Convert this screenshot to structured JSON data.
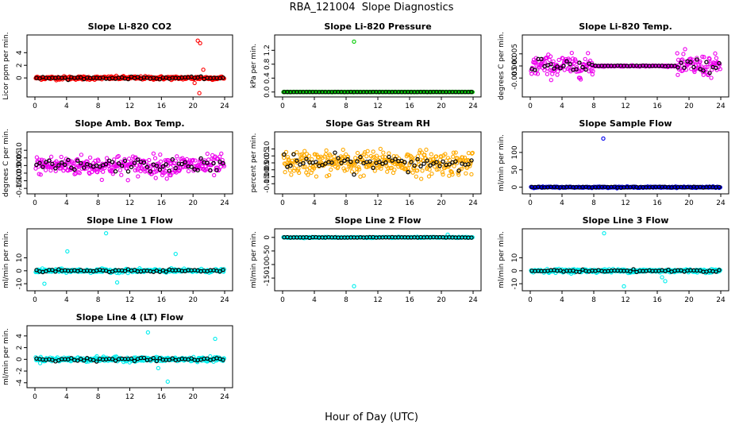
{
  "page": {
    "title": "RBA_121004  Slope Diagnostics",
    "xlabel": "Hour of Day (UTC)"
  },
  "chart_data": [
    {
      "type": "scatter",
      "title": "Slope Li-820 CO2",
      "ylabel": "Licor ppm per min.",
      "xlim": [
        0,
        24
      ],
      "ylim": [
        -2.5,
        6.3
      ],
      "xticks": [
        0,
        4,
        8,
        12,
        16,
        20,
        24
      ],
      "yticks": [
        0,
        2,
        4
      ],
      "ytick_labels": [
        "0",
        "2",
        "4"
      ],
      "color": "#ff0000",
      "noise": 0.25,
      "outliers": [
        [
          20.6,
          5.9
        ],
        [
          20.9,
          5.5
        ],
        [
          20.8,
          -2.4
        ],
        [
          21.3,
          1.3
        ],
        [
          20.2,
          -0.8
        ]
      ]
    },
    {
      "type": "scatter",
      "title": "Slope Li-820 Pressure",
      "ylabel": "kPa per min.",
      "xlim": [
        0,
        24
      ],
      "ylim": [
        -0.05,
        1.55
      ],
      "xticks": [
        0,
        4,
        8,
        12,
        16,
        20,
        24
      ],
      "yticks": [
        0,
        0.4,
        0.8,
        1.2
      ],
      "ytick_labels": [
        "0.0",
        "0.4",
        "0.8",
        "1.2"
      ],
      "color": "#00cc00",
      "noise": 0.004,
      "outliers": [
        [
          9.0,
          1.45
        ]
      ]
    },
    {
      "type": "scatter",
      "title": "Slope Li-820 Temp.",
      "ylabel": "degrees C per min.",
      "xlim": [
        0,
        24
      ],
      "ylim": [
        -0.0115,
        0.0115
      ],
      "xticks": [
        0,
        4,
        8,
        12,
        16,
        20,
        24
      ],
      "yticks": [
        -0.005,
        0,
        0.005
      ],
      "ytick_labels": [
        "-0.005",
        "0.000",
        "0.005"
      ],
      "color": "#ee00ee",
      "noise": 0.004,
      "quiet_range": [
        8,
        18.5
      ],
      "outliers": []
    },
    {
      "type": "scatter",
      "title": "Slope Amb. Box Temp.",
      "ylabel": "degrees C per min.",
      "xlim": [
        0,
        24
      ],
      "ylim": [
        -0.165,
        0.2
      ],
      "xticks": [
        0,
        4,
        8,
        12,
        16,
        20,
        24
      ],
      "yticks": [
        -0.15,
        -0.1,
        -0.05,
        0,
        0.05,
        0.1
      ],
      "ytick_labels": [
        "-0.15",
        "-0.10",
        "-0.05",
        "0.00",
        "0.05",
        "0.10"
      ],
      "color": "#ee00ee",
      "noise": 0.06,
      "outliers": []
    },
    {
      "type": "scatter",
      "title": "Slope Gas Stream RH",
      "ylabel": "percent per min.",
      "xlim": [
        0,
        24
      ],
      "ylim": [
        -0.2,
        0.2
      ],
      "xticks": [
        0,
        4,
        8,
        12,
        16,
        20,
        24
      ],
      "yticks": [
        -0.15,
        -0.1,
        -0.05,
        0,
        0.05,
        0.1
      ],
      "ytick_labels": [
        "-0.15",
        "-0.10",
        "-0.05",
        "0.00",
        "0.05",
        "0.10"
      ],
      "color": "#ffaa00",
      "noise": 0.08,
      "outliers": []
    },
    {
      "type": "scatter",
      "title": "Slope Sample Flow",
      "ylabel": "ml/min per min.",
      "xlim": [
        0,
        24
      ],
      "ylim": [
        -10,
        150
      ],
      "xticks": [
        0,
        4,
        8,
        12,
        16,
        20,
        24
      ],
      "yticks": [
        0,
        50,
        100
      ],
      "ytick_labels": [
        "0",
        "50",
        "100"
      ],
      "color": "#0000ee",
      "noise": 1.5,
      "outliers": [
        [
          9.2,
          140
        ]
      ]
    },
    {
      "type": "scatter",
      "title": "Slope Line 1 Flow",
      "ylabel": "ml/min per min.",
      "xlim": [
        0,
        24
      ],
      "ylim": [
        -13,
        30
      ],
      "xticks": [
        0,
        4,
        8,
        12,
        16,
        20,
        24
      ],
      "yticks": [
        -10,
        0,
        10
      ],
      "ytick_labels": [
        "-10",
        "0",
        "10"
      ],
      "color": "#00eeee",
      "noise": 1.2,
      "outliers": [
        [
          9.0,
          29
        ],
        [
          1.2,
          -10
        ],
        [
          4.1,
          15
        ],
        [
          17.8,
          13
        ],
        [
          10.4,
          -9
        ]
      ]
    },
    {
      "type": "scatter",
      "title": "Slope Line 2 Flow",
      "ylabel": "ml/min per min.",
      "xlim": [
        0,
        24
      ],
      "ylim": [
        -185,
        20
      ],
      "xticks": [
        0,
        4,
        8,
        12,
        16,
        20,
        24
      ],
      "yticks": [
        -150,
        -100,
        -50,
        0
      ],
      "ytick_labels": [
        "-150",
        "-100",
        "-50",
        "0"
      ],
      "color": "#00eeee",
      "noise": 1.5,
      "outliers": [
        [
          9.0,
          -180
        ],
        [
          20.8,
          10
        ]
      ]
    },
    {
      "type": "scatter",
      "title": "Slope Line 3 Flow",
      "ylabel": "ml/min per min.",
      "xlim": [
        0,
        24
      ],
      "ylim": [
        -13,
        30
      ],
      "xticks": [
        0,
        4,
        8,
        12,
        16,
        20,
        24
      ],
      "yticks": [
        -10,
        0,
        10
      ],
      "ytick_labels": [
        "-10",
        "0",
        "10"
      ],
      "color": "#00eeee",
      "noise": 1.2,
      "outliers": [
        [
          9.3,
          29
        ],
        [
          11.8,
          -12
        ],
        [
          17.0,
          -8
        ],
        [
          16.6,
          -5
        ]
      ]
    },
    {
      "type": "scatter",
      "title": "Slope Line 4 (LT) Flow",
      "ylabel": "ml/min per min.",
      "xlim": [
        0,
        24
      ],
      "ylim": [
        -4.3,
        5.2
      ],
      "xticks": [
        0,
        4,
        8,
        12,
        16,
        20,
        24
      ],
      "yticks": [
        -4,
        -2,
        0,
        2,
        4
      ],
      "ytick_labels": [
        "-4",
        "-2",
        "0",
        "2",
        "4"
      ],
      "color": "#00eeee",
      "noise": 0.35,
      "outliers": [
        [
          14.3,
          4.6
        ],
        [
          16.8,
          -3.8
        ],
        [
          22.8,
          3.5
        ],
        [
          15.6,
          -1.5
        ]
      ]
    }
  ]
}
